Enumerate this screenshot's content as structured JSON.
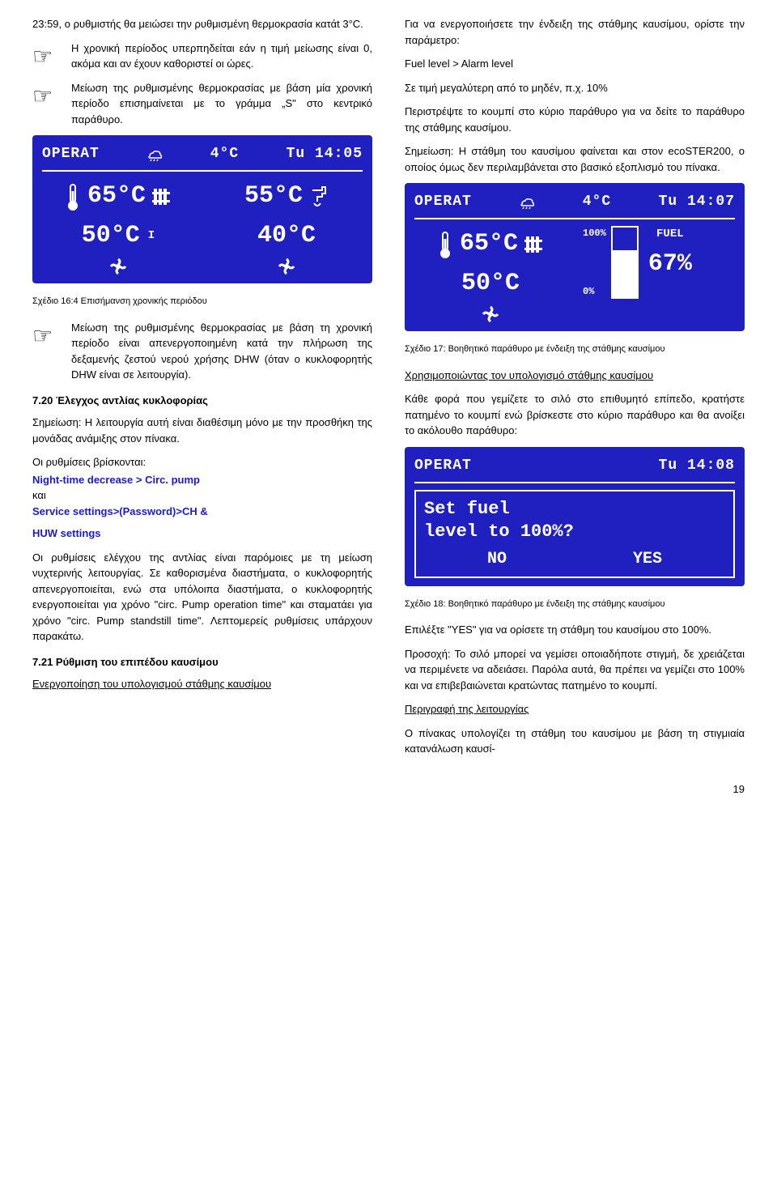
{
  "left": {
    "p1": "23:59, ο ρυθμιστής θα μειώσει την ρυθμισμένη θερμοκρασία κατάt 3°C.",
    "note1": "Η χρονική περίοδος υπερπηδείται εάν η τιμή μείωσης είναι 0, ακόμα και αν έχουν καθοριστεί οι ώρες.",
    "note2": "Μείωση της ρυθμισμένης θερμοκρασίας με βάση μία χρονική περίοδο επισημαίνεται με το γράμμα „S\" στο κεντρικό παράθυρο.",
    "lcd1": {
      "status": "OPERAT",
      "icon_temp": "4°C",
      "time": "Tu 14:05",
      "left_top": "65°C",
      "left_bot": "50°C",
      "right_top": "55°C",
      "right_bot": "40°C"
    },
    "caption1": "Σχέδιο 16:4 Επισήμανση χρονικής περιόδου",
    "note3": "Μείωση της ρυθμισμένης θερμοκρασίας με βάση τη χρονική περίοδο είναι απενεργοποιημένη κατά την πλήρωση της δεξαμενής ζεστού νερού χρήσης DHW (όταν ο κυκλοφορητής DHW είναι σε λειτουργία).",
    "h720": "7.20 Έλεγχος αντλίας κυκλοφορίας",
    "p720a": "Σημείωση: Η λειτουργία αυτή είναι διαθέσιμη μόνο με την προσθήκη της μονάδας ανάμιξης στον πίνακα.",
    "p720b": "Οι ρυθμίσεις βρίσκονται:",
    "menu1": "Night-time decrease > Circ. pump",
    "and": "και",
    "menu2": "Service settings>(Password)>CH &",
    "menu3": "HUW settings",
    "p720c": "Οι ρυθμίσεις ελέγχου της αντλίας είναι παρόμοιες με τη μείωση νυχτερινής λειτουργίας. Σε καθορισμένα διαστήματα, ο κυκλοφορητής απενεργοποιείται, ενώ στα υπόλοιπα διαστήματα, ο κυκλοφορητής ενεργοποιείται για χρόνο \"circ. Pump operation time\" και σταματάει για χρόνο \"circ. Pump standstill time\". Λεπτομερείς ρυθμίσεις υπάρχουν παρακάτω.",
    "h721": "7.21 Ρύθμιση του επιπέδου καυσίμου",
    "u721": "Ενεργοποίηση του υπολογισμού στάθμης καυσίμου"
  },
  "right": {
    "p1": "Για να ενεργοποιήσετε την ένδειξη της στάθμης καυσίμου, ορίστε την παράμετρο:",
    "p2": "Fuel level > Alarm level",
    "p3": "Σε τιμή μεγαλύτερη από το μηδέν, π.χ. 10%",
    "p4": "Περιστρέψτε το κουμπί στο κύριο παράθυρο για να δείτε το παράθυρο της στάθμης καυσίμου.",
    "p5": "Σημείωση: Η στάθμη του καυσίμου φαίνεται και στον ecoSTER200, ο οποίος όμως δεν περιλαμβάνεται στο βασικό εξοπλισμό του πίνακα.",
    "lcd2": {
      "status": "OPERAT",
      "icon_temp": "4°C",
      "time": "Tu 14:07",
      "left_top": "65°C",
      "left_bot": "50°C",
      "fuel_label": "FUEL",
      "fuel_pct": "67%",
      "fuel_top": "100%",
      "fuel_bot": "0%",
      "fuel_fill_pct": 67
    },
    "caption2": "Σχέδιο 17: Βοηθητικό παράθυρο με ένδειξη της στάθμης καυσίμου",
    "u_calc": "Χρησιμοποιώντας τον υπολογισμό στάθμης καυσίμου",
    "p6": "Κάθε φορά που γεμίζετε το σιλό στο επιθυμητό επίπεδο, κρατήστε πατημένο το κουμπί ενώ βρίσκεστε στο κύριο παράθυρο και θα ανοίξει το ακόλουθο παράθυρο:",
    "lcd3": {
      "status": "OPERAT",
      "time": "Tu 14:08",
      "line1": "Set fuel",
      "line2": "level to 100%?",
      "no": "NO",
      "yes": "YES"
    },
    "caption3": "Σχέδιο 18: Βοηθητικό παράθυρο με ένδειξη της στάθμης καυσίμου",
    "p7": "Επιλέξτε \"YES\" για να ορίσετε τη στάθμη του καυσίμου στο 100%.",
    "p8": "Προσοχή: Το σιλό μπορεί να γεμίσει οποιαδήποτε στιγμή, δε χρειάζεται να περιμένετε να αδειάσει. Παρόλα αυτά, θα πρέπει να γεμίζει στο 100% και να επιβεβαιώνεται κρατώντας πατημένο το κουμπί.",
    "u_desc": "Περιγραφή της λειτουργίας",
    "p9": "Ο πίνακας υπολογίζει τη στάθμη του καυσίμου με βάση τη στιγμιαία κατανάλωση καυσί-"
  },
  "page": "19"
}
